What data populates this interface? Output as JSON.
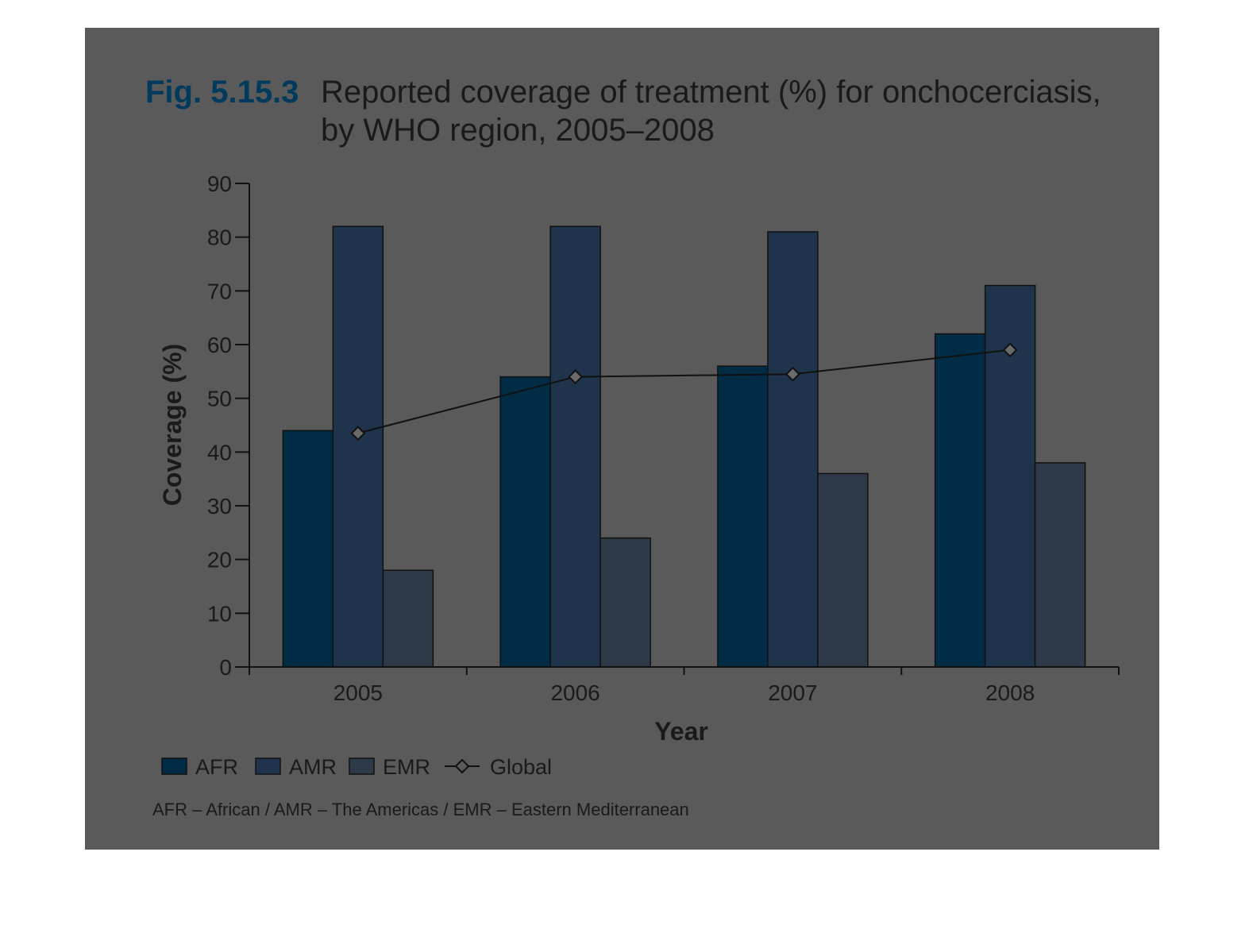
{
  "figure": {
    "number": "Fig. 5.15.3",
    "title_line1": "Reported coverage of treatment (%) for onchocerciasis,",
    "title_line2": "by WHO region, 2005–2008"
  },
  "footnote": "AFR – African / AMR – The Americas / EMR – Eastern Mediterranean",
  "colors": {
    "panel": "#5a5a5a",
    "AFR": "#002d45",
    "AMR": "#1f344c",
    "EMR": "#2f3a48",
    "global_marker": "#6a6a6a",
    "line": "#111111"
  },
  "chart_data": {
    "type": "bar",
    "title": "Reported coverage of treatment (%) for onchocerciasis, by WHO region, 2005–2008",
    "xlabel": "Year",
    "ylabel": "Coverage (%)",
    "ylim": [
      0,
      90
    ],
    "yticks": [
      0,
      10,
      20,
      30,
      40,
      50,
      60,
      70,
      80,
      90
    ],
    "categories": [
      "2005",
      "2006",
      "2007",
      "2008"
    ],
    "series": [
      {
        "name": "AFR",
        "values": [
          44,
          54,
          56,
          62
        ]
      },
      {
        "name": "AMR",
        "values": [
          82,
          82,
          81,
          71
        ]
      },
      {
        "name": "EMR",
        "values": [
          18,
          24,
          36,
          38
        ]
      }
    ],
    "line_series": {
      "name": "Global",
      "values": [
        43.5,
        54,
        54.5,
        59
      ]
    },
    "legend": [
      "AFR",
      "AMR",
      "EMR",
      "Global"
    ],
    "legend_position": "bottom-left",
    "grid": false
  }
}
